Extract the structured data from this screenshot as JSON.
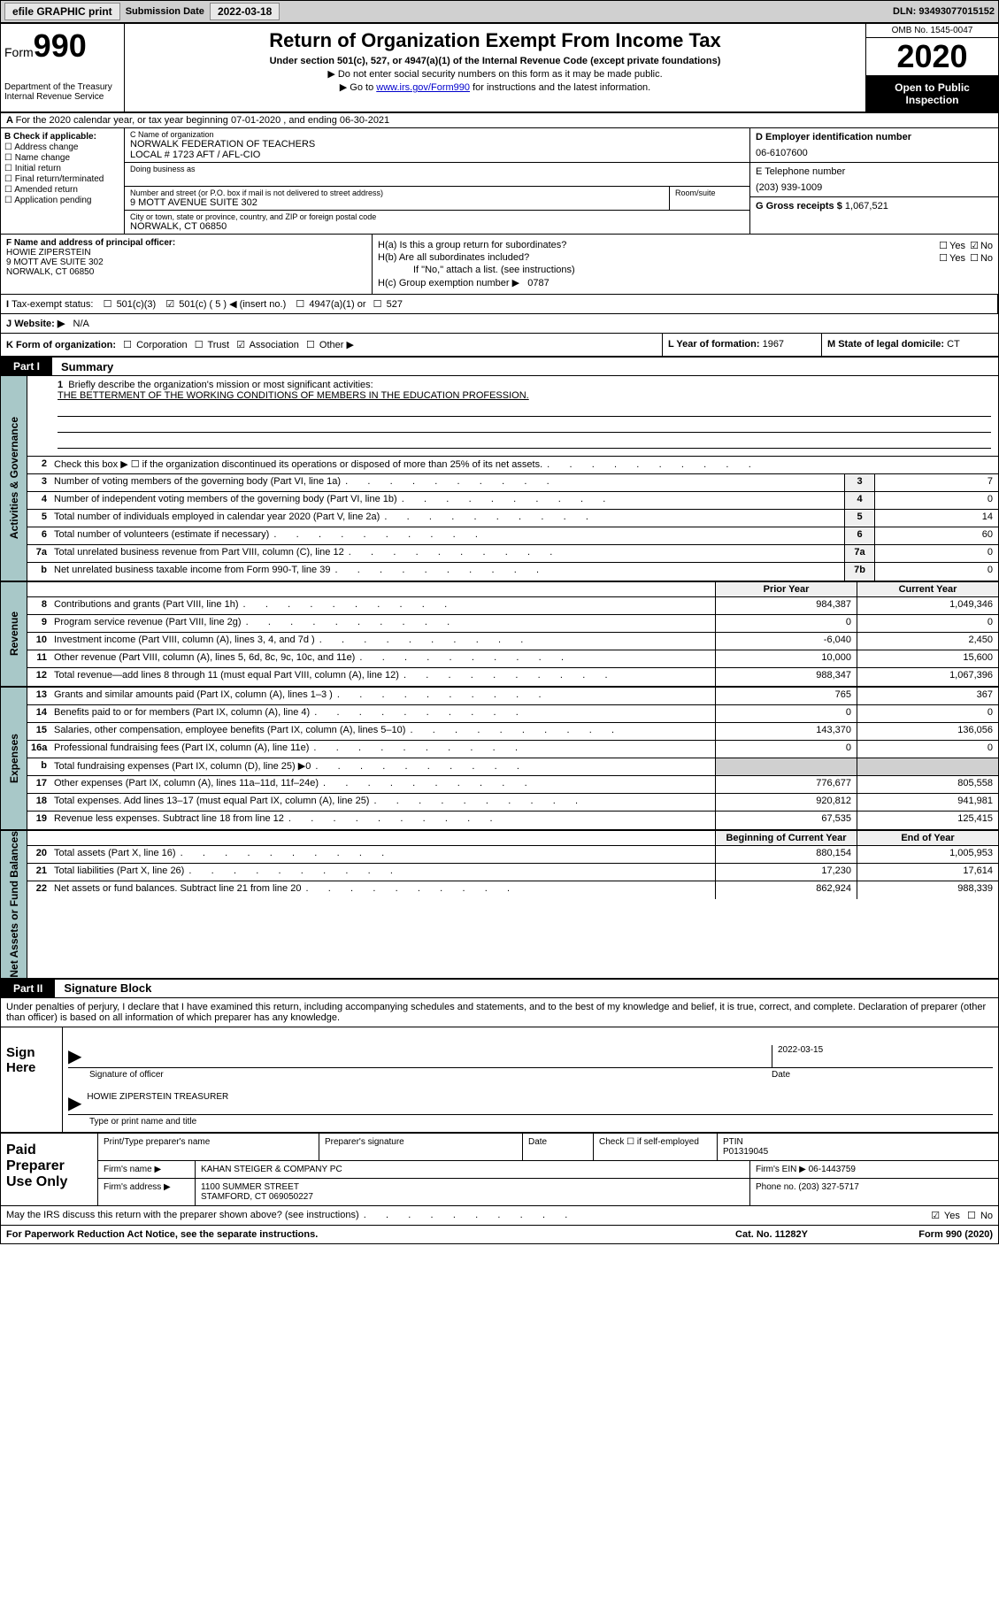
{
  "topbar": {
    "efile": "efile GRAPHIC print",
    "sub_label": "Submission Date",
    "sub_value": "2022-03-18",
    "dln": "DLN: 93493077015152"
  },
  "header": {
    "form_prefix": "Form",
    "form_num": "990",
    "dept1": "Department of the Treasury",
    "dept2": "Internal Revenue Service",
    "title": "Return of Organization Exempt From Income Tax",
    "sub": "Under section 501(c), 527, or 4947(a)(1) of the Internal Revenue Code (except private foundations)",
    "note1": "Do not enter social security numbers on this form as it may be made public.",
    "note2_pre": "Go to ",
    "note2_link": "www.irs.gov/Form990",
    "note2_post": " for instructions and the latest information.",
    "omb": "OMB No. 1545-0047",
    "year": "2020",
    "open": "Open to Public Inspection"
  },
  "rowA": {
    "text": "For the 2020 calendar year, or tax year beginning 07-01-2020   , and ending 06-30-2021"
  },
  "secB": {
    "b_label": "B Check if applicable:",
    "b_opts": [
      "Address change",
      "Name change",
      "Initial return",
      "Final return/terminated",
      "Amended return",
      "Application pending"
    ],
    "c_name_lbl": "C Name of organization",
    "c_name": "NORWALK FEDERATION OF TEACHERS",
    "c_name2": "LOCAL # 1723 AFT / AFL-CIO",
    "dba_lbl": "Doing business as",
    "addr_lbl": "Number and street (or P.O. box if mail is not delivered to street address)",
    "addr": "9 MOTT AVENUE SUITE 302",
    "room_lbl": "Room/suite",
    "city_lbl": "City or town, state or province, country, and ZIP or foreign postal code",
    "city": "NORWALK, CT 06850",
    "d_lbl": "D Employer identification number",
    "d_val": "06-6107600",
    "e_lbl": "E Telephone number",
    "e_val": "(203) 939-1009",
    "g_lbl": "G Gross receipts $",
    "g_val": "1,067,521"
  },
  "secF": {
    "f_lbl": "F Name and address of principal officer:",
    "f_name": "HOWIE ZIPERSTEIN",
    "f_addr1": "9 MOTT AVE SUITE 302",
    "f_addr2": "NORWALK, CT  06850"
  },
  "secH": {
    "ha": "H(a)  Is this a group return for subordinates?",
    "hb": "H(b)  Are all subordinates included?",
    "hb_note": "If \"No,\" attach a list. (see instructions)",
    "hc": "H(c)  Group exemption number ▶",
    "hc_val": "0787",
    "yes": "Yes",
    "no": "No"
  },
  "rowI": {
    "label": "Tax-exempt status:",
    "o1": "501(c)(3)",
    "o2": "501(c) ( 5 ) ◀ (insert no.)",
    "o3": "4947(a)(1) or",
    "o4": "527"
  },
  "rowJ": {
    "label": "Website: ▶",
    "val": "N/A"
  },
  "rowK": {
    "k": "K Form of organization:",
    "k_opts": [
      "Corporation",
      "Trust",
      "Association",
      "Other ▶"
    ],
    "l_lbl": "L Year of formation:",
    "l_val": "1967",
    "m_lbl": "M State of legal domicile:",
    "m_val": "CT"
  },
  "part1": {
    "tab": "Part I",
    "title": "Summary"
  },
  "vtabs": {
    "gov": "Activities & Governance",
    "rev": "Revenue",
    "exp": "Expenses",
    "net": "Net Assets or Fund Balances"
  },
  "mission": {
    "num": "1",
    "label": "Briefly describe the organization's mission or most significant activities:",
    "text": "THE BETTERMENT OF THE WORKING CONDITIONS OF MEMBERS IN THE EDUCATION PROFESSION."
  },
  "lines_gov": [
    {
      "n": "2",
      "d": "Check this box ▶ ☐  if the organization discontinued its operations or disposed of more than 25% of its net assets.",
      "box": "",
      "v": ""
    },
    {
      "n": "3",
      "d": "Number of voting members of the governing body (Part VI, line 1a)",
      "box": "3",
      "v": "7"
    },
    {
      "n": "4",
      "d": "Number of independent voting members of the governing body (Part VI, line 1b)",
      "box": "4",
      "v": "0"
    },
    {
      "n": "5",
      "d": "Total number of individuals employed in calendar year 2020 (Part V, line 2a)",
      "box": "5",
      "v": "14"
    },
    {
      "n": "6",
      "d": "Total number of volunteers (estimate if necessary)",
      "box": "6",
      "v": "60"
    },
    {
      "n": "7a",
      "d": "Total unrelated business revenue from Part VIII, column (C), line 12",
      "box": "7a",
      "v": "0"
    },
    {
      "n": "b",
      "d": "Net unrelated business taxable income from Form 990-T, line 39",
      "box": "7b",
      "v": "0"
    }
  ],
  "colhdr1": {
    "c1": "Prior Year",
    "c2": "Current Year"
  },
  "lines_rev": [
    {
      "n": "8",
      "d": "Contributions and grants (Part VIII, line 1h)",
      "v1": "984,387",
      "v2": "1,049,346"
    },
    {
      "n": "9",
      "d": "Program service revenue (Part VIII, line 2g)",
      "v1": "0",
      "v2": "0"
    },
    {
      "n": "10",
      "d": "Investment income (Part VIII, column (A), lines 3, 4, and 7d )",
      "v1": "-6,040",
      "v2": "2,450"
    },
    {
      "n": "11",
      "d": "Other revenue (Part VIII, column (A), lines 5, 6d, 8c, 9c, 10c, and 11e)",
      "v1": "10,000",
      "v2": "15,600"
    },
    {
      "n": "12",
      "d": "Total revenue—add lines 8 through 11 (must equal Part VIII, column (A), line 12)",
      "v1": "988,347",
      "v2": "1,067,396"
    }
  ],
  "lines_exp": [
    {
      "n": "13",
      "d": "Grants and similar amounts paid (Part IX, column (A), lines 1–3 )",
      "v1": "765",
      "v2": "367"
    },
    {
      "n": "14",
      "d": "Benefits paid to or for members (Part IX, column (A), line 4)",
      "v1": "0",
      "v2": "0"
    },
    {
      "n": "15",
      "d": "Salaries, other compensation, employee benefits (Part IX, column (A), lines 5–10)",
      "v1": "143,370",
      "v2": "136,056"
    },
    {
      "n": "16a",
      "d": "Professional fundraising fees (Part IX, column (A), line 11e)",
      "v1": "0",
      "v2": "0"
    },
    {
      "n": "b",
      "d": "Total fundraising expenses (Part IX, column (D), line 25) ▶0",
      "v1": "",
      "v2": ""
    },
    {
      "n": "17",
      "d": "Other expenses (Part IX, column (A), lines 11a–11d, 11f–24e)",
      "v1": "776,677",
      "v2": "805,558"
    },
    {
      "n": "18",
      "d": "Total expenses. Add lines 13–17 (must equal Part IX, column (A), line 25)",
      "v1": "920,812",
      "v2": "941,981"
    },
    {
      "n": "19",
      "d": "Revenue less expenses. Subtract line 18 from line 12",
      "v1": "67,535",
      "v2": "125,415"
    }
  ],
  "colhdr2": {
    "c1": "Beginning of Current Year",
    "c2": "End of Year"
  },
  "lines_net": [
    {
      "n": "20",
      "d": "Total assets (Part X, line 16)",
      "v1": "880,154",
      "v2": "1,005,953"
    },
    {
      "n": "21",
      "d": "Total liabilities (Part X, line 26)",
      "v1": "17,230",
      "v2": "17,614"
    },
    {
      "n": "22",
      "d": "Net assets or fund balances. Subtract line 21 from line 20",
      "v1": "862,924",
      "v2": "988,339"
    }
  ],
  "part2": {
    "tab": "Part II",
    "title": "Signature Block",
    "text": "Under penalties of perjury, I declare that I have examined this return, including accompanying schedules and statements, and to the best of my knowledge and belief, it is true, correct, and complete. Declaration of preparer (other than officer) is based on all information of which preparer has any knowledge."
  },
  "sign": {
    "lbl": "Sign Here",
    "sig_lbl": "Signature of officer",
    "date_lbl": "Date",
    "date_val": "2022-03-15",
    "name": "HOWIE ZIPERSTEIN  TREASURER",
    "type_lbl": "Type or print name and title"
  },
  "paid": {
    "lbl": "Paid Preparer Use Only",
    "h1": "Print/Type preparer's name",
    "h2": "Preparer's signature",
    "h3": "Date",
    "h4": "Check ☐ if self-employed",
    "h5_lbl": "PTIN",
    "h5_val": "P01319045",
    "firm_lbl": "Firm's name    ▶",
    "firm_val": "KAHAN STEIGER & COMPANY PC",
    "ein_lbl": "Firm's EIN ▶",
    "ein_val": "06-1443759",
    "addr_lbl": "Firm's address ▶",
    "addr1": "1100 SUMMER STREET",
    "addr2": "STAMFORD, CT  069050227",
    "phone_lbl": "Phone no.",
    "phone_val": "(203) 327-5717"
  },
  "discuss": {
    "q": "May the IRS discuss this return with the preparer shown above? (see instructions)",
    "yes": "Yes",
    "no": "No"
  },
  "footer": {
    "l": "For Paperwork Reduction Act Notice, see the separate instructions.",
    "m": "Cat. No. 11282Y",
    "r": "Form 990 (2020)"
  }
}
